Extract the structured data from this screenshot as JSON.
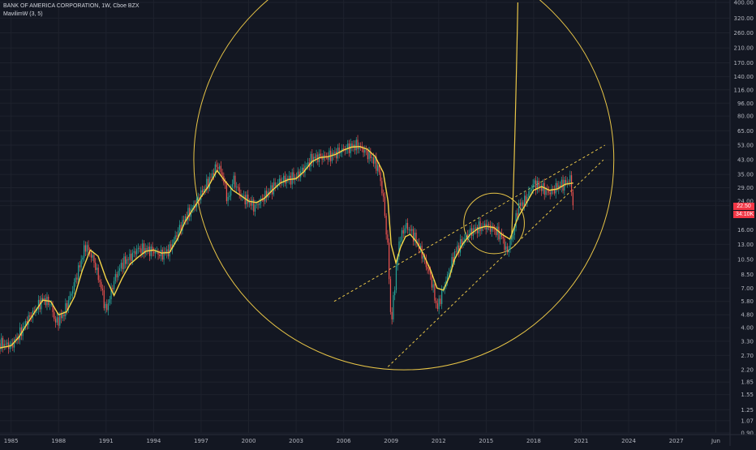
{
  "legend": {
    "title": "BANK OF AMERICA CORPORATION, 1W, Cboe BZX",
    "indicator": "MavilimW (3, 5)"
  },
  "badges": {
    "price1": "22.50",
    "price2": "34:10K"
  },
  "colors": {
    "background": "#131722",
    "up": "#26a69a",
    "down": "#ef5350",
    "mavilim": "#f5d547",
    "drawing": "#e8c547",
    "grid": "#1e222d",
    "badge": "#f23645"
  },
  "chart_data": {
    "type": "line",
    "title": "BANK OF AMERICA CORPORATION, 1W, Cboe BZX",
    "scale": "log",
    "ylim": [
      0.9,
      400
    ],
    "xlim": [
      1984.3,
      2030.4
    ],
    "yticks": [
      "400.00",
      "320.00",
      "260.00",
      "210.00",
      "170.00",
      "140.00",
      "116.00",
      "96.00",
      "80.00",
      "65.00",
      "53.00",
      "43.00",
      "35.00",
      "29.00",
      "24.00",
      "22.50",
      "16.00",
      "13.00",
      "10.50",
      "8.50",
      "7.00",
      "5.80",
      "4.80",
      "4.00",
      "3.30",
      "2.70",
      "2.20",
      "1.85",
      "1.55",
      "1.25",
      "1.07",
      "0.90"
    ],
    "xticks": [
      "1985",
      "1988",
      "1991",
      "1994",
      "1997",
      "2000",
      "2003",
      "2006",
      "2009",
      "2012",
      "2015",
      "2018",
      "2021",
      "2024",
      "2027",
      "Jun"
    ],
    "series": [
      {
        "name": "Price",
        "x": [
          1984.3,
          1985.0,
          1985.5,
          1986.0,
          1986.5,
          1987.0,
          1987.5,
          1987.8,
          1988.3,
          1988.8,
          1989.3,
          1989.7,
          1990.2,
          1990.7,
          1991.0,
          1991.5,
          1992.0,
          1992.5,
          1993.0,
          1993.5,
          1994.0,
          1994.5,
          1995.0,
          1995.5,
          1996.0,
          1996.5,
          1997.0,
          1997.5,
          1998.0,
          1998.3,
          1998.7,
          1999.0,
          1999.5,
          2000.0,
          2000.4,
          2000.9,
          2001.5,
          2002.0,
          2002.6,
          2003.0,
          2003.5,
          2004.0,
          2004.5,
          2005.0,
          2005.5,
          2006.0,
          2006.5,
          2006.9,
          2007.3,
          2007.8,
          2008.2,
          2008.5,
          2008.8,
          2009.0,
          2009.2,
          2009.5,
          2009.9,
          2010.3,
          2010.7,
          2011.0,
          2011.5,
          2011.9,
          2012.2,
          2012.6,
          2013.0,
          2013.5,
          2014.0,
          2014.5,
          2015.0,
          2015.5,
          2016.0,
          2016.3,
          2016.7,
          2017.0,
          2017.5,
          2018.0,
          2018.5,
          2019.0,
          2019.5,
          2020.0,
          2020.3,
          2020.5
        ],
        "values": [
          3.2,
          3.1,
          3.6,
          4.4,
          5.1,
          6.0,
          5.6,
          4.3,
          4.8,
          6.5,
          9.4,
          12.8,
          10.5,
          7.0,
          5.0,
          7.8,
          9.9,
          10.8,
          12.2,
          12.1,
          11.8,
          11.2,
          12.0,
          15.4,
          19.0,
          22.0,
          26.8,
          32.0,
          40.0,
          36.0,
          24.0,
          33.0,
          26.0,
          24.0,
          22.0,
          25.0,
          29.0,
          32.0,
          33.0,
          34.0,
          38.0,
          44.0,
          45.0,
          45.0,
          47.0,
          50.0,
          52.0,
          53.0,
          49.0,
          44.0,
          38.0,
          25.0,
          12.0,
          4.0,
          7.0,
          13.5,
          17.0,
          15.5,
          13.0,
          11.0,
          8.2,
          5.2,
          6.5,
          8.5,
          11.5,
          13.6,
          15.5,
          16.5,
          17.0,
          16.0,
          14.5,
          11.5,
          15.0,
          22.0,
          24.5,
          31.0,
          29.0,
          27.0,
          29.5,
          31.0,
          33.0,
          22.5
        ]
      },
      {
        "name": "MavilimW (3, 5)",
        "x": [
          1984.3,
          1985.0,
          1985.5,
          1986.0,
          1986.5,
          1987.0,
          1987.5,
          1988.0,
          1988.5,
          1989.0,
          1989.5,
          1990.0,
          1990.5,
          1991.0,
          1991.5,
          1992.0,
          1992.5,
          1993.0,
          1993.5,
          1994.0,
          1994.5,
          1995.0,
          1995.5,
          1996.0,
          1996.5,
          1997.0,
          1997.5,
          1998.0,
          1998.5,
          1999.0,
          1999.5,
          2000.0,
          2000.5,
          2001.0,
          2001.5,
          2002.0,
          2002.5,
          2003.0,
          2003.5,
          2004.0,
          2004.5,
          2005.0,
          2005.5,
          2006.0,
          2006.5,
          2007.0,
          2007.5,
          2008.0,
          2008.5,
          2008.8,
          2009.0,
          2009.3,
          2009.6,
          2009.9,
          2010.2,
          2010.6,
          2011.0,
          2011.5,
          2011.9,
          2012.3,
          2012.7,
          2013.0,
          2013.5,
          2014.0,
          2014.5,
          2015.0,
          2015.5,
          2016.0,
          2016.5,
          2017.0,
          2017.5,
          2018.0,
          2018.5,
          2019.0,
          2019.5,
          2020.0,
          2020.5
        ],
        "values": [
          3.0,
          3.1,
          3.5,
          4.2,
          5.0,
          5.9,
          5.8,
          4.8,
          5.0,
          6.2,
          9.0,
          12.0,
          11.0,
          8.0,
          6.3,
          8.0,
          9.8,
          10.8,
          11.8,
          12.0,
          11.5,
          11.6,
          14.0,
          18.0,
          21.5,
          25.5,
          30.0,
          37.0,
          32.0,
          28.0,
          26.0,
          24.0,
          23.5,
          25.0,
          28.0,
          31.0,
          32.5,
          33.0,
          36.5,
          42.0,
          44.5,
          45.0,
          46.5,
          49.5,
          51.5,
          52.0,
          50.0,
          45.0,
          36.0,
          24.0,
          13.0,
          10.0,
          12.5,
          14.5,
          15.0,
          13.5,
          11.5,
          9.0,
          7.0,
          6.8,
          8.3,
          10.5,
          13.0,
          15.0,
          16.3,
          16.8,
          16.5,
          15.0,
          14.0,
          19.0,
          23.0,
          28.0,
          29.5,
          28.0,
          28.5,
          30.5,
          31.0
        ]
      }
    ],
    "drawings": {
      "big_circle": {
        "center": [
          2009.8,
          43.0
        ],
        "edge": [
          2009.8,
          2.2
        ]
      },
      "small_circle": {
        "center": [
          2015.5,
          17.5
        ],
        "edge": [
          2015.5,
          11.4
        ]
      },
      "spiral_tail": {
        "x": [
          2016.6,
          2016.8,
          2017.0
        ],
        "y": [
          14.0,
          40.0,
          400.0
        ]
      },
      "channel_upper": {
        "x": [
          2005.4,
          2022.5
        ],
        "y": [
          5.8,
          53.0
        ]
      },
      "channel_lower": {
        "x": [
          2008.8,
          2022.4
        ],
        "y": [
          2.3,
          43.0
        ]
      }
    }
  }
}
